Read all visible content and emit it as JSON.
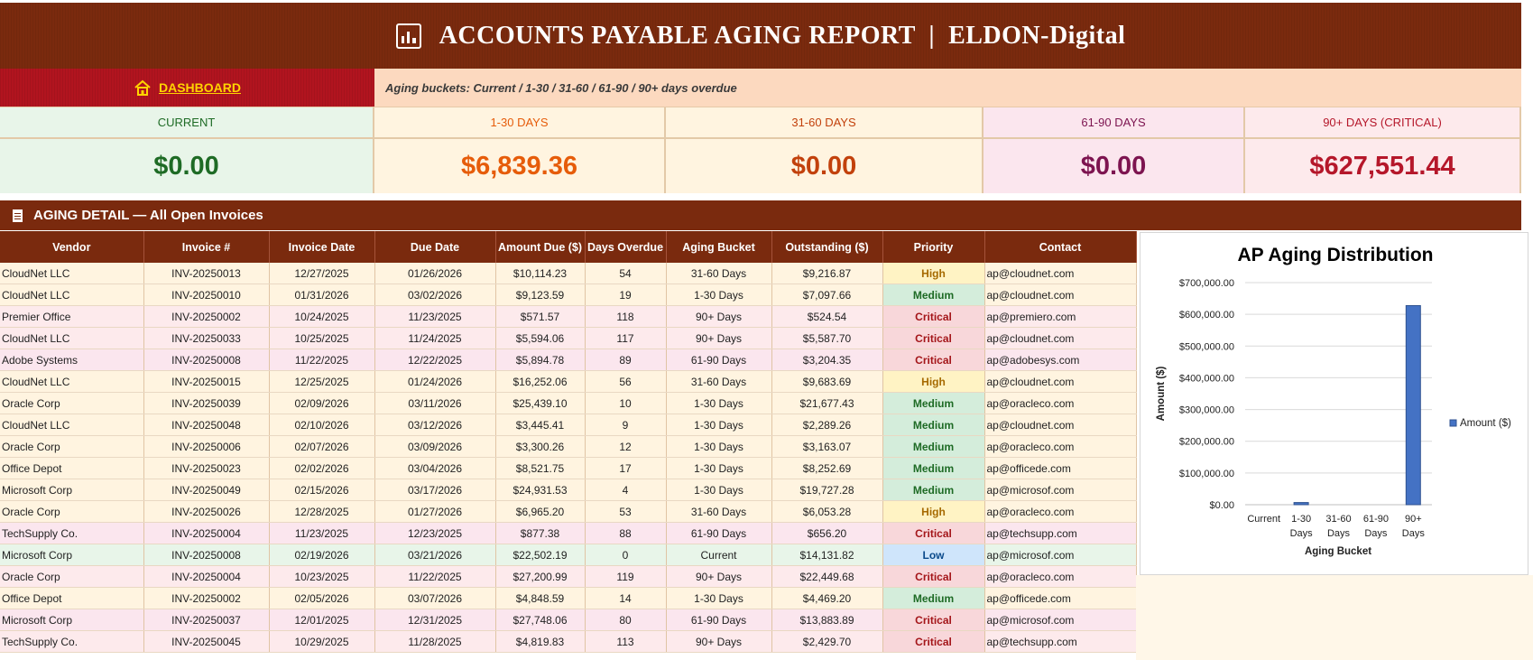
{
  "header": {
    "title": "ACCOUNTS PAYABLE AGING REPORT  |  ELDON-Digital"
  },
  "nav": {
    "dashboard_label": "DASHBOARD",
    "note": "Aging buckets: Current / 1-30 / 31-60 / 61-90 / 90+ days overdue"
  },
  "buckets": [
    {
      "label": "CURRENT",
      "value": "$0.00",
      "color": "#1e6b25",
      "bg": "#e8f5e9"
    },
    {
      "label": "1-30 DAYS",
      "value": "$6,839.36",
      "color": "#e65c0a",
      "bg": "#fff4e0"
    },
    {
      "label": "31-60 DAYS",
      "value": "$0.00",
      "color": "#c2410c",
      "bg": "#fff4e0"
    },
    {
      "label": "61-90 DAYS",
      "value": "$0.00",
      "color": "#7d1450",
      "bg": "#fbe6ee"
    },
    {
      "label": "90+ DAYS (CRITICAL)",
      "value": "$627,551.44",
      "color": "#b5172a",
      "bg": "#fdeaec"
    }
  ],
  "section": {
    "title": "AGING DETAIL — All Open Invoices"
  },
  "table": {
    "headers": [
      "Vendor",
      "Invoice #",
      "Invoice Date",
      "Due Date",
      "Amount Due ($)",
      "Days Overdue",
      "Aging Bucket",
      "Outstanding ($)",
      "Priority",
      "Contact"
    ],
    "rows": [
      [
        "CloudNet LLC",
        "INV-20250013",
        "12/27/2025",
        "01/26/2026",
        "$10,114.23",
        "54",
        "31-60 Days",
        "$9,216.87",
        "High",
        "ap@cloudnet.com"
      ],
      [
        "CloudNet LLC",
        "INV-20250010",
        "01/31/2026",
        "03/02/2026",
        "$9,123.59",
        "19",
        "1-30 Days",
        "$7,097.66",
        "Medium",
        "ap@cloudnet.com"
      ],
      [
        "Premier Office",
        "INV-20250002",
        "10/24/2025",
        "11/23/2025",
        "$571.57",
        "118",
        "90+ Days",
        "$524.54",
        "Critical",
        "ap@premiero.com"
      ],
      [
        "CloudNet LLC",
        "INV-20250033",
        "10/25/2025",
        "11/24/2025",
        "$5,594.06",
        "117",
        "90+ Days",
        "$5,587.70",
        "Critical",
        "ap@cloudnet.com"
      ],
      [
        "Adobe Systems",
        "INV-20250008",
        "11/22/2025",
        "12/22/2025",
        "$5,894.78",
        "89",
        "61-90 Days",
        "$3,204.35",
        "Critical",
        "ap@adobesys.com"
      ],
      [
        "CloudNet LLC",
        "INV-20250015",
        "12/25/2025",
        "01/24/2026",
        "$16,252.06",
        "56",
        "31-60 Days",
        "$9,683.69",
        "High",
        "ap@cloudnet.com"
      ],
      [
        "Oracle Corp",
        "INV-20250039",
        "02/09/2026",
        "03/11/2026",
        "$25,439.10",
        "10",
        "1-30 Days",
        "$21,677.43",
        "Medium",
        "ap@oracleco.com"
      ],
      [
        "CloudNet LLC",
        "INV-20250048",
        "02/10/2026",
        "03/12/2026",
        "$3,445.41",
        "9",
        "1-30 Days",
        "$2,289.26",
        "Medium",
        "ap@cloudnet.com"
      ],
      [
        "Oracle Corp",
        "INV-20250006",
        "02/07/2026",
        "03/09/2026",
        "$3,300.26",
        "12",
        "1-30 Days",
        "$3,163.07",
        "Medium",
        "ap@oracleco.com"
      ],
      [
        "Office Depot",
        "INV-20250023",
        "02/02/2026",
        "03/04/2026",
        "$8,521.75",
        "17",
        "1-30 Days",
        "$8,252.69",
        "Medium",
        "ap@officede.com"
      ],
      [
        "Microsoft Corp",
        "INV-20250049",
        "02/15/2026",
        "03/17/2026",
        "$24,931.53",
        "4",
        "1-30 Days",
        "$19,727.28",
        "Medium",
        "ap@microsof.com"
      ],
      [
        "Oracle Corp",
        "INV-20250026",
        "12/28/2025",
        "01/27/2026",
        "$6,965.20",
        "53",
        "31-60 Days",
        "$6,053.28",
        "High",
        "ap@oracleco.com"
      ],
      [
        "TechSupply Co.",
        "INV-20250004",
        "11/23/2025",
        "12/23/2025",
        "$877.38",
        "88",
        "61-90 Days",
        "$656.20",
        "Critical",
        "ap@techsupp.com"
      ],
      [
        "Microsoft Corp",
        "INV-20250008",
        "02/19/2026",
        "03/21/2026",
        "$22,502.19",
        "0",
        "Current",
        "$14,131.82",
        "Low",
        "ap@microsof.com"
      ],
      [
        "Oracle Corp",
        "INV-20250004",
        "10/23/2025",
        "11/22/2025",
        "$27,200.99",
        "119",
        "90+ Days",
        "$22,449.68",
        "Critical",
        "ap@oracleco.com"
      ],
      [
        "Office Depot",
        "INV-20250002",
        "02/05/2026",
        "03/07/2026",
        "$4,848.59",
        "14",
        "1-30 Days",
        "$4,469.20",
        "Medium",
        "ap@officede.com"
      ],
      [
        "Microsoft Corp",
        "INV-20250037",
        "12/01/2025",
        "12/31/2025",
        "$27,748.06",
        "80",
        "61-90 Days",
        "$13,883.89",
        "Critical",
        "ap@microsof.com"
      ],
      [
        "TechSupply Co.",
        "INV-20250045",
        "10/29/2025",
        "11/28/2025",
        "$4,819.83",
        "113",
        "90+ Days",
        "$2,429.70",
        "Critical",
        "ap@techsupp.com"
      ]
    ]
  },
  "colors": {
    "bucket_row": {
      "Current": "#e8f5e9",
      "1-30 Days": "#fff4e0",
      "31-60 Days": "#fff4e0",
      "61-90 Days": "#fbe6ee",
      "90+ Days": "#fdeaec"
    },
    "priority": {
      "High": {
        "bg": "#fff3c4",
        "fg": "#a66a00"
      },
      "Medium": {
        "bg": "#d4eddb",
        "fg": "#1e6b25"
      },
      "Critical": {
        "bg": "#f8d7da",
        "fg": "#a4161a"
      },
      "Low": {
        "bg": "#cfe5fb",
        "fg": "#0b4a8b"
      }
    },
    "bar": "#4472c4"
  },
  "chart_data": {
    "type": "bar",
    "title": "AP Aging Distribution",
    "xlabel": "Aging Bucket",
    "ylabel": "Amount ($)",
    "categories": [
      "Current",
      "1-30 Days",
      "31-60 Days",
      "61-90 Days",
      "90+ Days"
    ],
    "series": [
      {
        "name": "Amount ($)",
        "values": [
          0,
          6839.36,
          0,
          0,
          627551.44
        ]
      }
    ],
    "ylim": [
      0,
      700000
    ],
    "yticks": [
      "$0.00",
      "$100,000.00",
      "$200,000.00",
      "$300,000.00",
      "$400,000.00",
      "$500,000.00",
      "$600,000.00",
      "$700,000.00"
    ],
    "legend": "right",
    "grid": true
  }
}
